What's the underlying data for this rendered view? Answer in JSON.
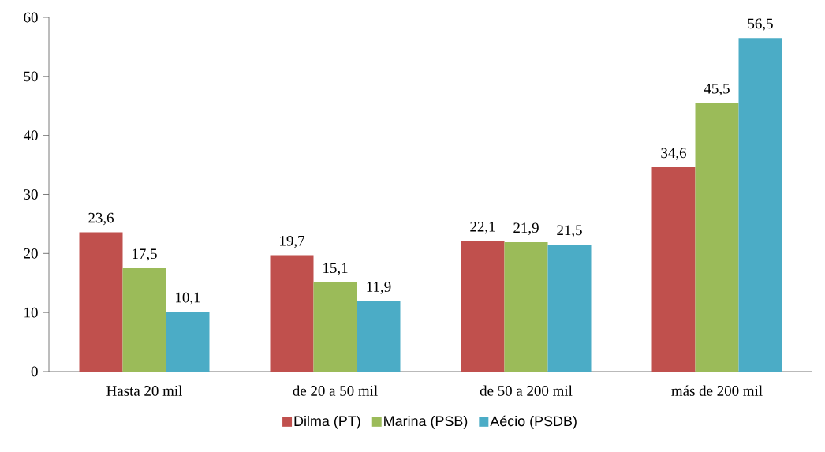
{
  "chart_data": {
    "type": "bar",
    "categories": [
      "Hasta 20 mil",
      "de 20 a 50 mil",
      "de 50 a 200 mil",
      "más de 200 mil"
    ],
    "series": [
      {
        "name": "Dilma (PT)",
        "color": "#c0504d",
        "values": [
          23.6,
          19.7,
          22.1,
          34.6
        ],
        "value_labels": [
          "23,6",
          "19,7",
          "22,1",
          "34,6"
        ]
      },
      {
        "name": "Marina (PSB)",
        "color": "#9bbb59",
        "values": [
          17.5,
          15.1,
          21.9,
          45.5
        ],
        "value_labels": [
          "17,5",
          "15,1",
          "21,9",
          "45,5"
        ]
      },
      {
        "name": "Aécio (PSDB)",
        "color": "#4bacc6",
        "values": [
          10.1,
          11.9,
          21.5,
          56.5
        ],
        "value_labels": [
          "10,1",
          "11,9",
          "21,5",
          "56,5"
        ]
      }
    ],
    "ylim": [
      0,
      60
    ],
    "yticks": [
      0,
      10,
      20,
      30,
      40,
      50,
      60
    ],
    "grid": false,
    "legend": "bottom"
  }
}
